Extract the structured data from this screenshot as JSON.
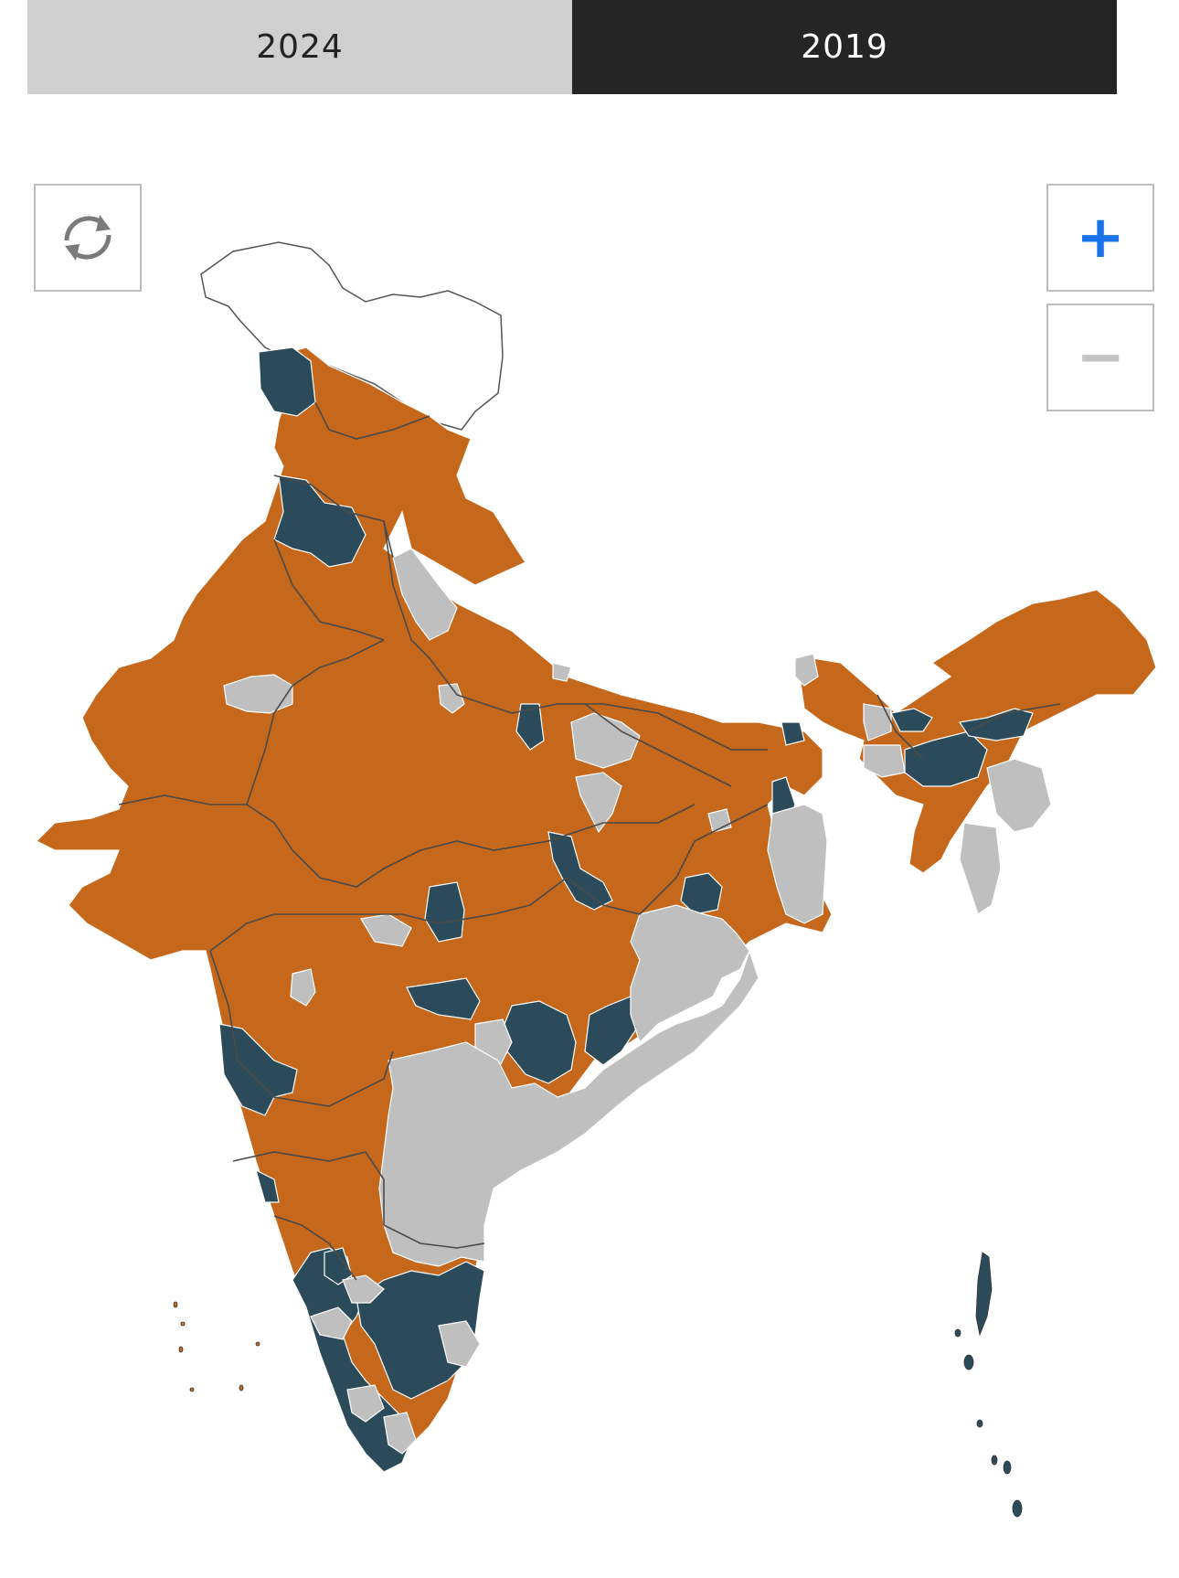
{
  "tabs": [
    {
      "label": "2024",
      "active": false
    },
    {
      "label": "2019",
      "active": true
    }
  ],
  "controls": {
    "reset_icon": "refresh-icon",
    "zoom_in_symbol": "+",
    "zoom_out_symbol": "−",
    "zoom_in_icon": "plus-icon",
    "zoom_out_icon": "minus-icon"
  },
  "colors": {
    "tab_active_bg": "#252525",
    "tab_inactive_bg": "#cfcfcf",
    "accent": "#1a73e8",
    "orange": "#c5681c",
    "teal": "#2c4b5a",
    "gray": "#bfbfbf"
  }
}
